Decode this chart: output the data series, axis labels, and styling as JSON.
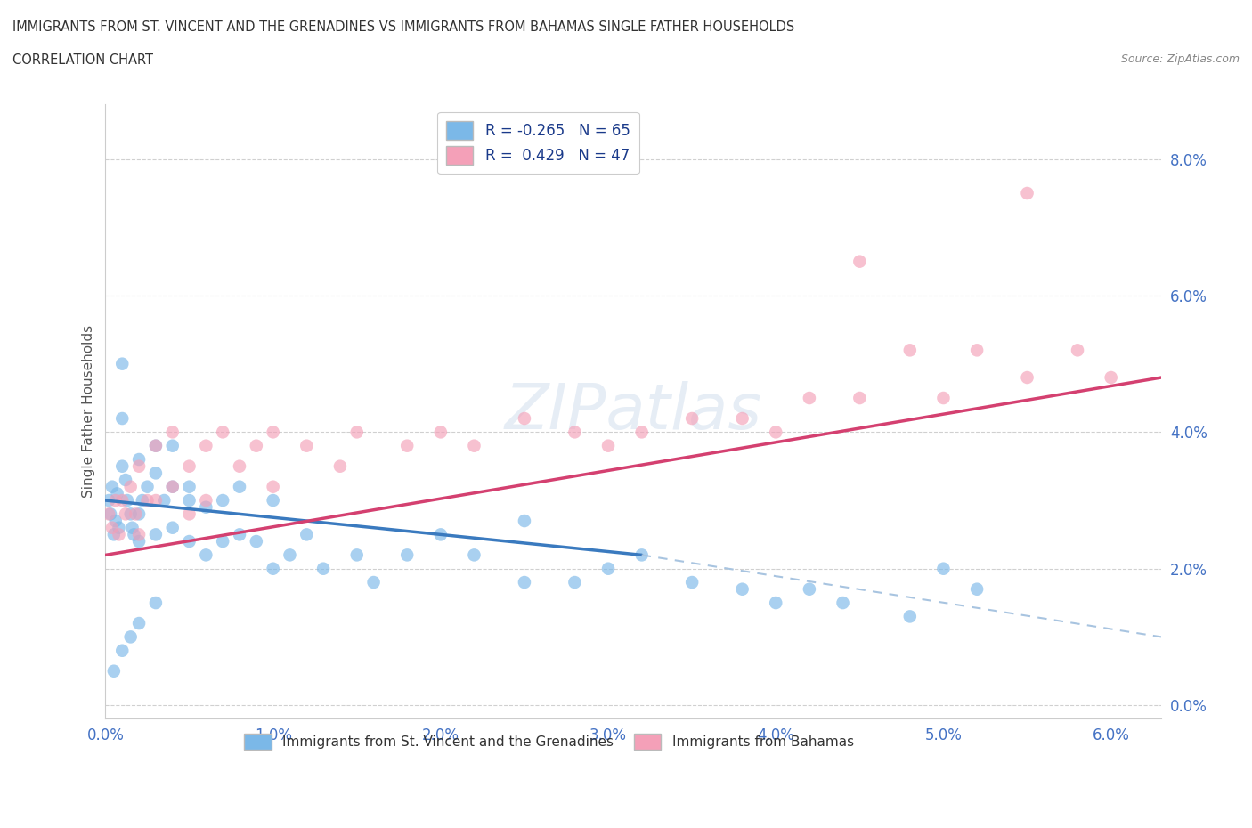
{
  "title_line1": "IMMIGRANTS FROM ST. VINCENT AND THE GRENADINES VS IMMIGRANTS FROM BAHAMAS SINGLE FATHER HOUSEHOLDS",
  "title_line2": "CORRELATION CHART",
  "source": "Source: ZipAtlas.com",
  "ylabel": "Single Father Households",
  "x_ticks_labels": [
    "0.0%",
    "1.0%",
    "2.0%",
    "3.0%",
    "4.0%",
    "5.0%",
    "6.0%"
  ],
  "x_ticks_vals": [
    0.0,
    0.01,
    0.02,
    0.03,
    0.04,
    0.05,
    0.06
  ],
  "y_ticks_labels": [
    "0.0%",
    "2.0%",
    "4.0%",
    "6.0%",
    "8.0%"
  ],
  "y_ticks_vals": [
    0.0,
    0.02,
    0.04,
    0.06,
    0.08
  ],
  "xlim": [
    0.0,
    0.063
  ],
  "ylim": [
    -0.002,
    0.088
  ],
  "legend_label1": "Immigrants from St. Vincent and the Grenadines",
  "legend_label2": "Immigrants from Bahamas",
  "r1": -0.265,
  "n1": 65,
  "r2": 0.429,
  "n2": 47,
  "color1": "#7bb8e8",
  "color2": "#f4a0b8",
  "trendline1_color": "#3a7abf",
  "trendline2_color": "#d44070",
  "trendline_dashed_color": "#a8c4e0",
  "watermark": "ZIPatlas",
  "background_color": "#ffffff",
  "grid_color": "#d0d0d0",
  "trendline1_x0": 0.0,
  "trendline1_y0": 0.03,
  "trendline1_x1": 0.032,
  "trendline1_y1": 0.022,
  "trendline1_dash_x0": 0.032,
  "trendline1_dash_y0": 0.022,
  "trendline1_dash_x1": 0.063,
  "trendline1_dash_y1": 0.01,
  "trendline2_x0": 0.0,
  "trendline2_y0": 0.022,
  "trendline2_x1": 0.063,
  "trendline2_y1": 0.048,
  "scatter1_x": [
    0.0002,
    0.0003,
    0.0004,
    0.0005,
    0.0006,
    0.0007,
    0.0008,
    0.001,
    0.001,
    0.001,
    0.0012,
    0.0013,
    0.0015,
    0.0016,
    0.0017,
    0.002,
    0.002,
    0.002,
    0.0022,
    0.0025,
    0.003,
    0.003,
    0.003,
    0.0035,
    0.004,
    0.004,
    0.004,
    0.005,
    0.005,
    0.005,
    0.006,
    0.006,
    0.007,
    0.007,
    0.008,
    0.008,
    0.009,
    0.01,
    0.01,
    0.011,
    0.012,
    0.013,
    0.015,
    0.016,
    0.018,
    0.02,
    0.022,
    0.025,
    0.025,
    0.028,
    0.03,
    0.032,
    0.035,
    0.038,
    0.04,
    0.042,
    0.044,
    0.048,
    0.05,
    0.052,
    0.0005,
    0.001,
    0.0015,
    0.002,
    0.003
  ],
  "scatter1_y": [
    0.03,
    0.028,
    0.032,
    0.025,
    0.027,
    0.031,
    0.026,
    0.05,
    0.042,
    0.035,
    0.033,
    0.03,
    0.028,
    0.026,
    0.025,
    0.036,
    0.028,
    0.024,
    0.03,
    0.032,
    0.038,
    0.034,
    0.025,
    0.03,
    0.038,
    0.032,
    0.026,
    0.03,
    0.024,
    0.032,
    0.029,
    0.022,
    0.03,
    0.024,
    0.032,
    0.025,
    0.024,
    0.03,
    0.02,
    0.022,
    0.025,
    0.02,
    0.022,
    0.018,
    0.022,
    0.025,
    0.022,
    0.027,
    0.018,
    0.018,
    0.02,
    0.022,
    0.018,
    0.017,
    0.015,
    0.017,
    0.015,
    0.013,
    0.02,
    0.017,
    0.005,
    0.008,
    0.01,
    0.012,
    0.015
  ],
  "scatter2_x": [
    0.0002,
    0.0004,
    0.0006,
    0.0008,
    0.001,
    0.0012,
    0.0015,
    0.0018,
    0.002,
    0.002,
    0.0025,
    0.003,
    0.003,
    0.004,
    0.004,
    0.005,
    0.005,
    0.006,
    0.006,
    0.007,
    0.008,
    0.009,
    0.01,
    0.01,
    0.012,
    0.014,
    0.015,
    0.018,
    0.02,
    0.022,
    0.025,
    0.028,
    0.03,
    0.032,
    0.035,
    0.038,
    0.04,
    0.042,
    0.045,
    0.048,
    0.05,
    0.052,
    0.055,
    0.058,
    0.06,
    0.045,
    0.055
  ],
  "scatter2_y": [
    0.028,
    0.026,
    0.03,
    0.025,
    0.03,
    0.028,
    0.032,
    0.028,
    0.035,
    0.025,
    0.03,
    0.038,
    0.03,
    0.04,
    0.032,
    0.035,
    0.028,
    0.038,
    0.03,
    0.04,
    0.035,
    0.038,
    0.04,
    0.032,
    0.038,
    0.035,
    0.04,
    0.038,
    0.04,
    0.038,
    0.042,
    0.04,
    0.038,
    0.04,
    0.042,
    0.042,
    0.04,
    0.045,
    0.045,
    0.052,
    0.045,
    0.052,
    0.048,
    0.052,
    0.048,
    0.065,
    0.075
  ]
}
